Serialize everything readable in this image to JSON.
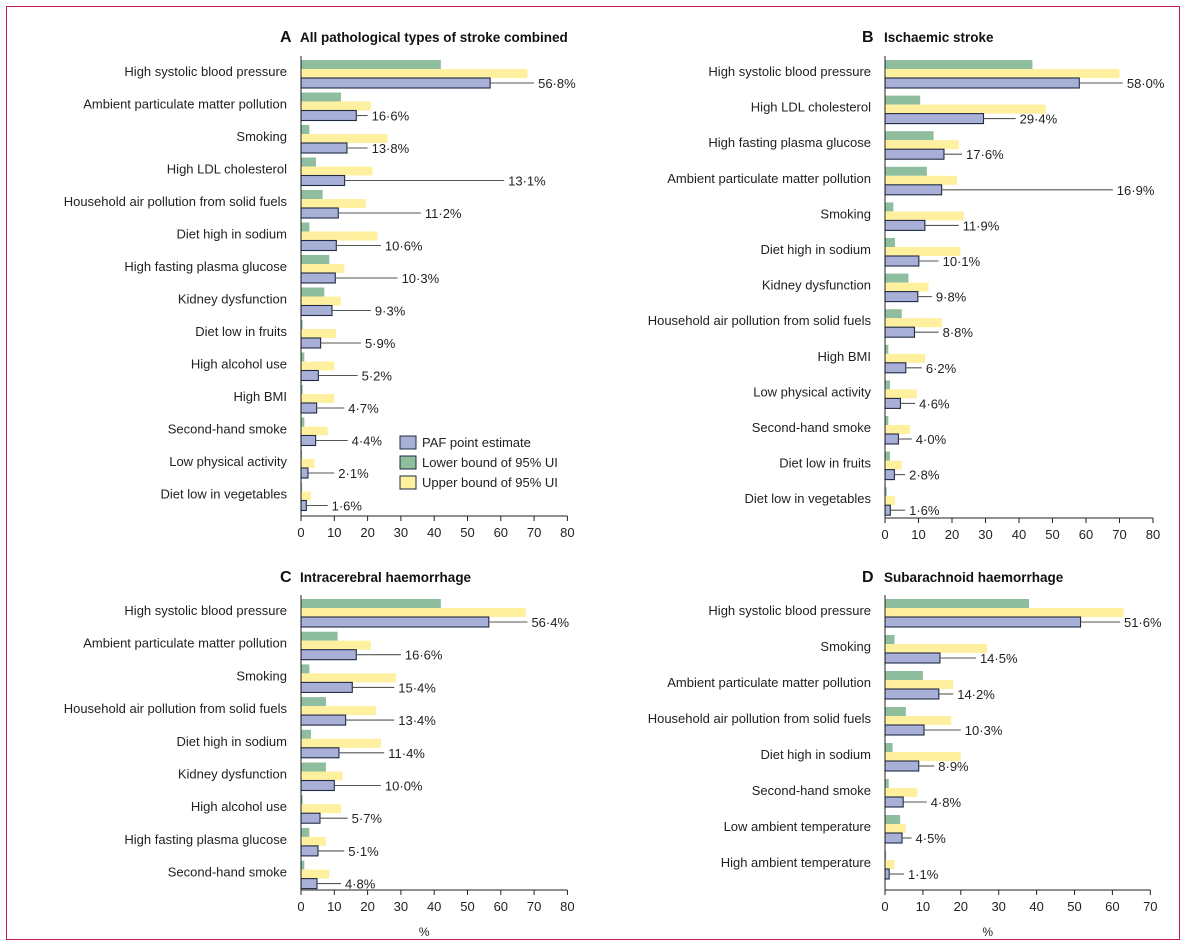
{
  "legend": {
    "point": "PAF point estimate",
    "lower": "Lower bound of 95% UI",
    "upper": "Upper bound of 95% UI"
  },
  "colors": {
    "point": "#a8b0d8",
    "lower": "#8fbe9e",
    "upper": "#fff0a0",
    "point_stroke": "#1f2a44",
    "line": "#555555",
    "frame": "#c2185b"
  },
  "chart_data": [
    {
      "type": "bar",
      "orientation": "horizontal",
      "panel_letter": "A",
      "title": "All pathological types of stroke combined",
      "xlabel": "",
      "xlim": [
        0,
        80
      ],
      "xticks": [
        0,
        10,
        20,
        30,
        40,
        50,
        60,
        70,
        80
      ],
      "categories": [
        "High systolic blood pressure",
        "Ambient particulate matter pollution",
        "Smoking",
        "High LDL cholesterol",
        "Household air pollution from solid fuels",
        "Diet high in sodium",
        "High fasting plasma glucose",
        "Kidney dysfunction",
        "Diet low in fruits",
        "High alcohol use",
        "High BMI",
        "Second-hand smoke",
        "Low physical activity",
        "Diet low in vegetables"
      ],
      "series": [
        {
          "name": "Lower bound of 95% UI",
          "values": [
            42,
            12,
            2.5,
            4.5,
            6.5,
            2.5,
            8.5,
            7,
            0.5,
            1,
            0.5,
            1,
            0.3,
            0.3
          ]
        },
        {
          "name": "Upper bound of 95% UI",
          "values": [
            68,
            21,
            26,
            21.5,
            19.5,
            23,
            13,
            12,
            10.5,
            10,
            10,
            8,
            4,
            3
          ]
        },
        {
          "name": "PAF point estimate",
          "values": [
            56.8,
            16.6,
            13.8,
            13.1,
            11.2,
            10.6,
            10.3,
            9.3,
            5.9,
            5.2,
            4.7,
            4.4,
            2.1,
            1.6
          ]
        }
      ],
      "lines": [
        70,
        20,
        20,
        61,
        36,
        24,
        29,
        21,
        18,
        17,
        13,
        14,
        10,
        8
      ],
      "labels": [
        "56·8%",
        "16·6%",
        "13·8%",
        "13·1%",
        "11·2%",
        "10·6%",
        "10·3%",
        "9·3%",
        "5·9%",
        "5·2%",
        "4·7%",
        "4·4%",
        "2·1%",
        "1·6%"
      ]
    },
    {
      "type": "bar",
      "orientation": "horizontal",
      "panel_letter": "B",
      "title": "Ischaemic stroke",
      "xlabel": "",
      "xlim": [
        0,
        80
      ],
      "xticks": [
        0,
        10,
        20,
        30,
        40,
        50,
        60,
        70,
        80
      ],
      "categories": [
        "High systolic blood pressure",
        "High LDL cholesterol",
        "High fasting plasma glucose",
        "Ambient particulate matter pollution",
        "Smoking",
        "Diet high in sodium",
        "Kidney dysfunction",
        "Household air pollution from solid fuels",
        "High BMI",
        "Low physical activity",
        "Second-hand smoke",
        "Diet low in fruits",
        "Diet low in vegetables"
      ],
      "series": [
        {
          "name": "Lower bound of 95% UI",
          "values": [
            44,
            10.5,
            14.5,
            12.5,
            2.5,
            3,
            7,
            5,
            1,
            1.5,
            1,
            1.5,
            0.5
          ]
        },
        {
          "name": "Upper bound of 95% UI",
          "values": [
            70,
            48,
            22,
            21.5,
            23.5,
            22.5,
            13,
            17,
            12,
            9.5,
            7.5,
            5,
            3
          ]
        },
        {
          "name": "PAF point estimate",
          "values": [
            58.0,
            29.4,
            17.6,
            16.9,
            11.9,
            10.1,
            9.8,
            8.8,
            6.2,
            4.6,
            4.0,
            2.8,
            1.6
          ]
        }
      ],
      "lines": [
        71,
        39,
        23,
        68,
        22,
        16,
        14,
        16,
        11,
        9,
        8,
        6,
        6
      ],
      "labels": [
        "58·0%",
        "29·4%",
        "17·6%",
        "16·9%",
        "11·9%",
        "10·1%",
        "9·8%",
        "8·8%",
        "6·2%",
        "4·6%",
        "4·0%",
        "2·8%",
        "1·6%"
      ]
    },
    {
      "type": "bar",
      "orientation": "horizontal",
      "panel_letter": "C",
      "title": "Intracerebral haemorrhage",
      "xlabel": "%",
      "xlim": [
        0,
        80
      ],
      "xticks": [
        0,
        10,
        20,
        30,
        40,
        50,
        60,
        70,
        80
      ],
      "categories": [
        "High systolic blood pressure",
        "Ambient particulate matter pollution",
        "Smoking",
        "Household air pollution from solid fuels",
        "Diet high in sodium",
        "Kidney dysfunction",
        "High alcohol use",
        "High fasting plasma glucose",
        "Second-hand smoke"
      ],
      "series": [
        {
          "name": "Lower bound of 95% UI",
          "values": [
            42,
            11,
            2.5,
            7.5,
            3,
            7.5,
            0.5,
            2.5,
            1
          ]
        },
        {
          "name": "Upper bound of 95% UI",
          "values": [
            67.5,
            21,
            28.5,
            22.5,
            24,
            12.5,
            12,
            7.5,
            8.5
          ]
        },
        {
          "name": "PAF point estimate",
          "values": [
            56.4,
            16.6,
            15.4,
            13.4,
            11.4,
            10.0,
            5.7,
            5.1,
            4.8
          ]
        }
      ],
      "lines": [
        68,
        30,
        28,
        28,
        25,
        24,
        14,
        13,
        12
      ],
      "labels": [
        "56·4%",
        "16·6%",
        "15·4%",
        "13·4%",
        "11·4%",
        "10·0%",
        "5·7%",
        "5·1%",
        "4·8%"
      ]
    },
    {
      "type": "bar",
      "orientation": "horizontal",
      "panel_letter": "D",
      "title": "Subarachnoid haemorrhage",
      "xlabel": "%",
      "xlim": [
        0,
        70
      ],
      "xticks": [
        0,
        10,
        20,
        30,
        40,
        50,
        60,
        70
      ],
      "categories": [
        "High systolic blood pressure",
        "Smoking",
        "Ambient particulate matter pollution",
        "Household air pollution from solid fuels",
        "Diet high in sodium",
        "Second-hand smoke",
        "Low ambient temperature",
        "High ambient temperature"
      ],
      "series": [
        {
          "name": "Lower bound of 95% UI",
          "values": [
            38,
            2.5,
            10,
            5.5,
            2,
            1,
            4,
            0.3
          ]
        },
        {
          "name": "Upper bound of 95% UI",
          "values": [
            63,
            27,
            18,
            17.5,
            20,
            8.5,
            5.5,
            2.5
          ]
        },
        {
          "name": "PAF point estimate",
          "values": [
            51.6,
            14.5,
            14.2,
            10.3,
            8.9,
            4.8,
            4.5,
            1.1
          ]
        }
      ],
      "lines": [
        62,
        24,
        18,
        20,
        13,
        11,
        7,
        5
      ],
      "labels": [
        "51·6%",
        "14·5%",
        "14·2%",
        "10·3%",
        "8·9%",
        "4·8%",
        "4·5%",
        "1·1%"
      ]
    }
  ]
}
